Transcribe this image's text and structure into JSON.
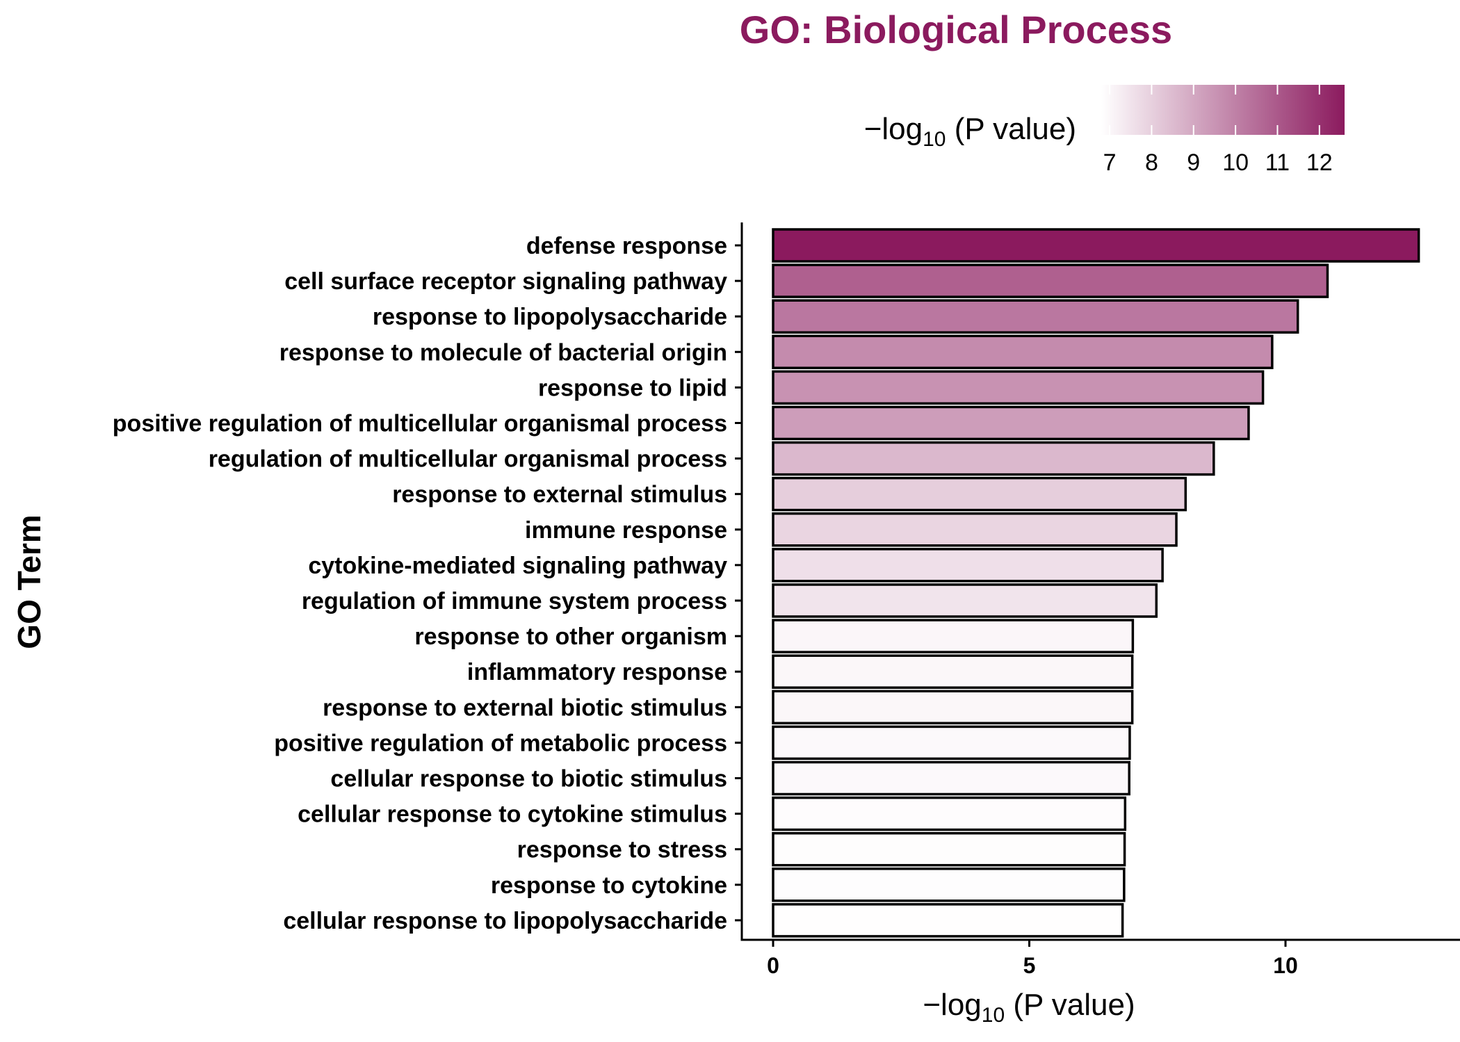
{
  "chart_data": {
    "type": "bar",
    "orientation": "horizontal",
    "title": "GO: Biological Process",
    "title_color": "#8B1A5E",
    "ylabel": "GO Term",
    "xlabel": {
      "prefix": "−log",
      "sub": "10",
      "suffix": " (P value)"
    },
    "xlim": [
      -0.6,
      13.5
    ],
    "xticks": [
      0,
      5,
      10
    ],
    "categories": [
      "defense response",
      "cell surface receptor signaling pathway",
      "response to lipopolysaccharide",
      "response to molecule of bacterial origin",
      "response to lipid",
      "positive regulation of multicellular organismal process",
      "regulation of multicellular organismal process",
      "response to external stimulus",
      "immune response",
      "cytokine-mediated signaling pathway",
      "regulation of immune system process",
      "response to other organism",
      "inflammatory response",
      "response to external biotic stimulus",
      "positive regulation of metabolic process",
      "cellular response to biotic stimulus",
      "cellular response to cytokine stimulus",
      "response to stress",
      "response to cytokine",
      "cellular response to lipopolysaccharide"
    ],
    "values": [
      12.6,
      10.82,
      10.24,
      9.74,
      9.56,
      9.28,
      8.6,
      8.05,
      7.87,
      7.6,
      7.48,
      7.02,
      7.01,
      7.01,
      6.96,
      6.95,
      6.87,
      6.86,
      6.85,
      6.82
    ],
    "legend": {
      "title": {
        "prefix": "−log",
        "sub": "10",
        "suffix": " (P value)"
      },
      "position": "top",
      "range": [
        6.8,
        12.6
      ],
      "ticks": [
        7,
        8,
        9,
        10,
        11,
        12
      ],
      "color_low": "#ffffff",
      "color_high": "#8B1A5E"
    },
    "grid": false
  }
}
